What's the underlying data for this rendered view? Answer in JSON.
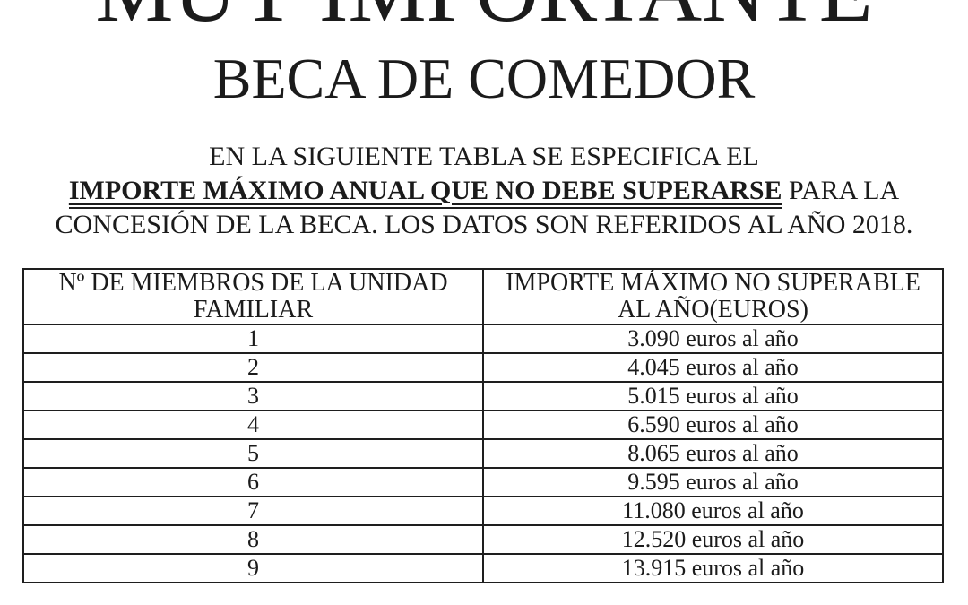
{
  "document": {
    "title_top": "MUY IMPORTANTE",
    "title_main": "BECA DE COMEDOR",
    "intro": {
      "line1": "EN LA SIGUIENTE TABLA SE ESPECIFICA EL",
      "line2_emphasis": "IMPORTE MÁXIMO ANUAL QUE NO DEBE SUPERARSE",
      "line2_tail": " PARA LA",
      "line3": "CONCESIÓN DE LA BECA. LOS DATOS SON REFERIDOS AL AÑO 2018."
    }
  },
  "table": {
    "column_headers": [
      "Nº DE MIEMBROS DE LA UNIDAD FAMILIAR",
      "IMPORTE MÁXIMO NO SUPERABLE AL AÑO(EUROS)"
    ],
    "rows": [
      {
        "members": "1",
        "amount": "3.090 euros al año"
      },
      {
        "members": "2",
        "amount": "4.045 euros al año"
      },
      {
        "members": "3",
        "amount": "5.015 euros al año"
      },
      {
        "members": "4",
        "amount": "6.590 euros al año"
      },
      {
        "members": "5",
        "amount": "8.065 euros al año"
      },
      {
        "members": "6",
        "amount": "9.595 euros al año"
      },
      {
        "members": "7",
        "amount": "11.080 euros al año"
      },
      {
        "members": "8",
        "amount": "12.520 euros al año"
      },
      {
        "members": "9",
        "amount": "13.915 euros al año"
      }
    ]
  },
  "colors": {
    "text": "#1b1b1b",
    "border": "#1e1e1e",
    "background": "#ffffff"
  }
}
